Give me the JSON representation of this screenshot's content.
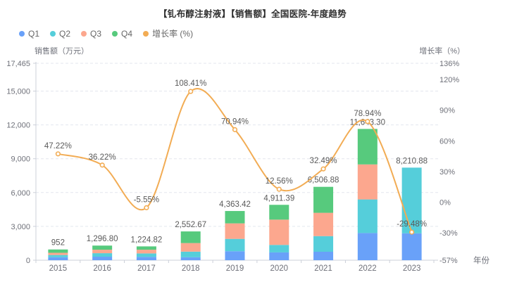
{
  "title": "【钆布醇注射液】【销售额】全国医院-年度趋势",
  "legend": {
    "items": [
      {
        "label": "Q1",
        "color": "#69A1F9"
      },
      {
        "label": "Q2",
        "color": "#55CEDA"
      },
      {
        "label": "Q3",
        "color": "#FCA78E"
      },
      {
        "label": "Q4",
        "color": "#57CA7D"
      },
      {
        "label": "增长率 (%)",
        "color": "#F2AC54"
      }
    ]
  },
  "chart_data": {
    "type": "bar",
    "subtype": "stacked-bar-with-line",
    "categories": [
      "2015",
      "2016",
      "2017",
      "2018",
      "2019",
      "2020",
      "2021",
      "2022",
      "2023"
    ],
    "series": [
      {
        "name": "Q1",
        "type": "bar",
        "stack": true,
        "color": "#69A1F9",
        "values": [
          263,
          310,
          290,
          260,
          794,
          691,
          749,
          2410,
          2381
        ]
      },
      {
        "name": "Q2",
        "type": "bar",
        "stack": true,
        "color": "#55CEDA",
        "values": [
          197,
          310,
          310,
          500,
          1097,
          665,
          1388,
          2980,
          5829.88
        ]
      },
      {
        "name": "Q3",
        "type": "bar",
        "stack": true,
        "color": "#FCA78E",
        "values": [
          197,
          310,
          330,
          760,
          1375,
          2242,
          2067,
          3105,
          0
        ]
      },
      {
        "name": "Q4",
        "type": "bar",
        "stack": true,
        "color": "#57CA7D",
        "values": [
          295,
          366.8,
          294.82,
          1032.67,
          1097.42,
          1313.39,
          2302.88,
          3148.3,
          0
        ]
      },
      {
        "name": "增长率 (%)",
        "type": "line",
        "axis": "right",
        "color": "#F2AC54",
        "values": [
          47.22,
          36.22,
          -5.55,
          108.41,
          70.94,
          12.56,
          32.49,
          78.94,
          -29.48
        ]
      }
    ],
    "totals": [
      952,
      1296.8,
      1224.82,
      2552.67,
      4363.42,
      4911.39,
      6506.88,
      11643.3,
      8210.88
    ],
    "total_labels": [
      "952",
      "1,296.80",
      "1,224.82",
      "2,552.67",
      "4,363.42",
      "4,911.39",
      "6,506.88",
      "11,643.30",
      "8,210.88"
    ],
    "growth_labels": [
      "47.22%",
      "36.22%",
      "-5.55%",
      "108.41%",
      "70.94%",
      "12.56%",
      "32.49%",
      "78.94%",
      "-29.48%"
    ],
    "left_axis": {
      "title": "销售额（万元）",
      "ticks": [
        0,
        3000,
        6000,
        9000,
        12000,
        15000,
        17465
      ],
      "tick_labels": [
        "0",
        "3,000",
        "6,000",
        "9,000",
        "12,000",
        "15,000",
        "17,465"
      ],
      "min": 0,
      "max": 17465
    },
    "right_axis": {
      "title": "增长率（%）",
      "ticks": [
        -57,
        -30,
        0,
        30,
        60,
        90,
        120,
        136
      ],
      "tick_labels": [
        "-57%",
        "-30%",
        "0%",
        "30%",
        "60%",
        "90%",
        "120%",
        "136%"
      ],
      "min": -57,
      "max": 136
    },
    "x_axis": {
      "title": "年份"
    },
    "grid": "dashed-horizontal",
    "legend_position": "top-left"
  },
  "colors": {
    "title_text": "#2f2f2f",
    "axis_text": "#6e7079",
    "value_label_text": "#5a5a5a",
    "axis_line": "#ccd0d9",
    "grid_line": "#e3e6ee",
    "background": "#ffffff"
  }
}
